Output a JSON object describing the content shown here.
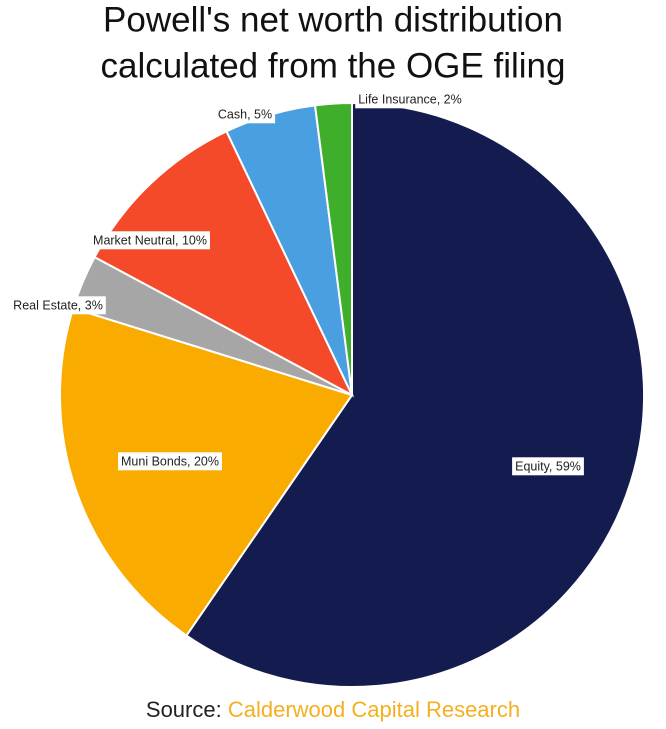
{
  "chart_data": {
    "type": "pie",
    "title": [
      "Powell's net worth distribution",
      "calculated from the OGE filing"
    ],
    "values": [
      59,
      20,
      3,
      10,
      5,
      2
    ],
    "value_labels": [
      "Equity, 59%",
      "Muni Bonds, 20%",
      "Real Estate, 3%",
      "Market Neutral, 10%",
      "Cash, 5%",
      "Life Insurance, 2%"
    ],
    "colors": [
      "#141c4f",
      "#f9ab00",
      "#a6a6a6",
      "#f44a2a",
      "#4a9fe0",
      "#3fae2a"
    ],
    "source_label": "Source:",
    "source_name": "Calderwood Capital Research",
    "source_color": "#f4b020"
  }
}
